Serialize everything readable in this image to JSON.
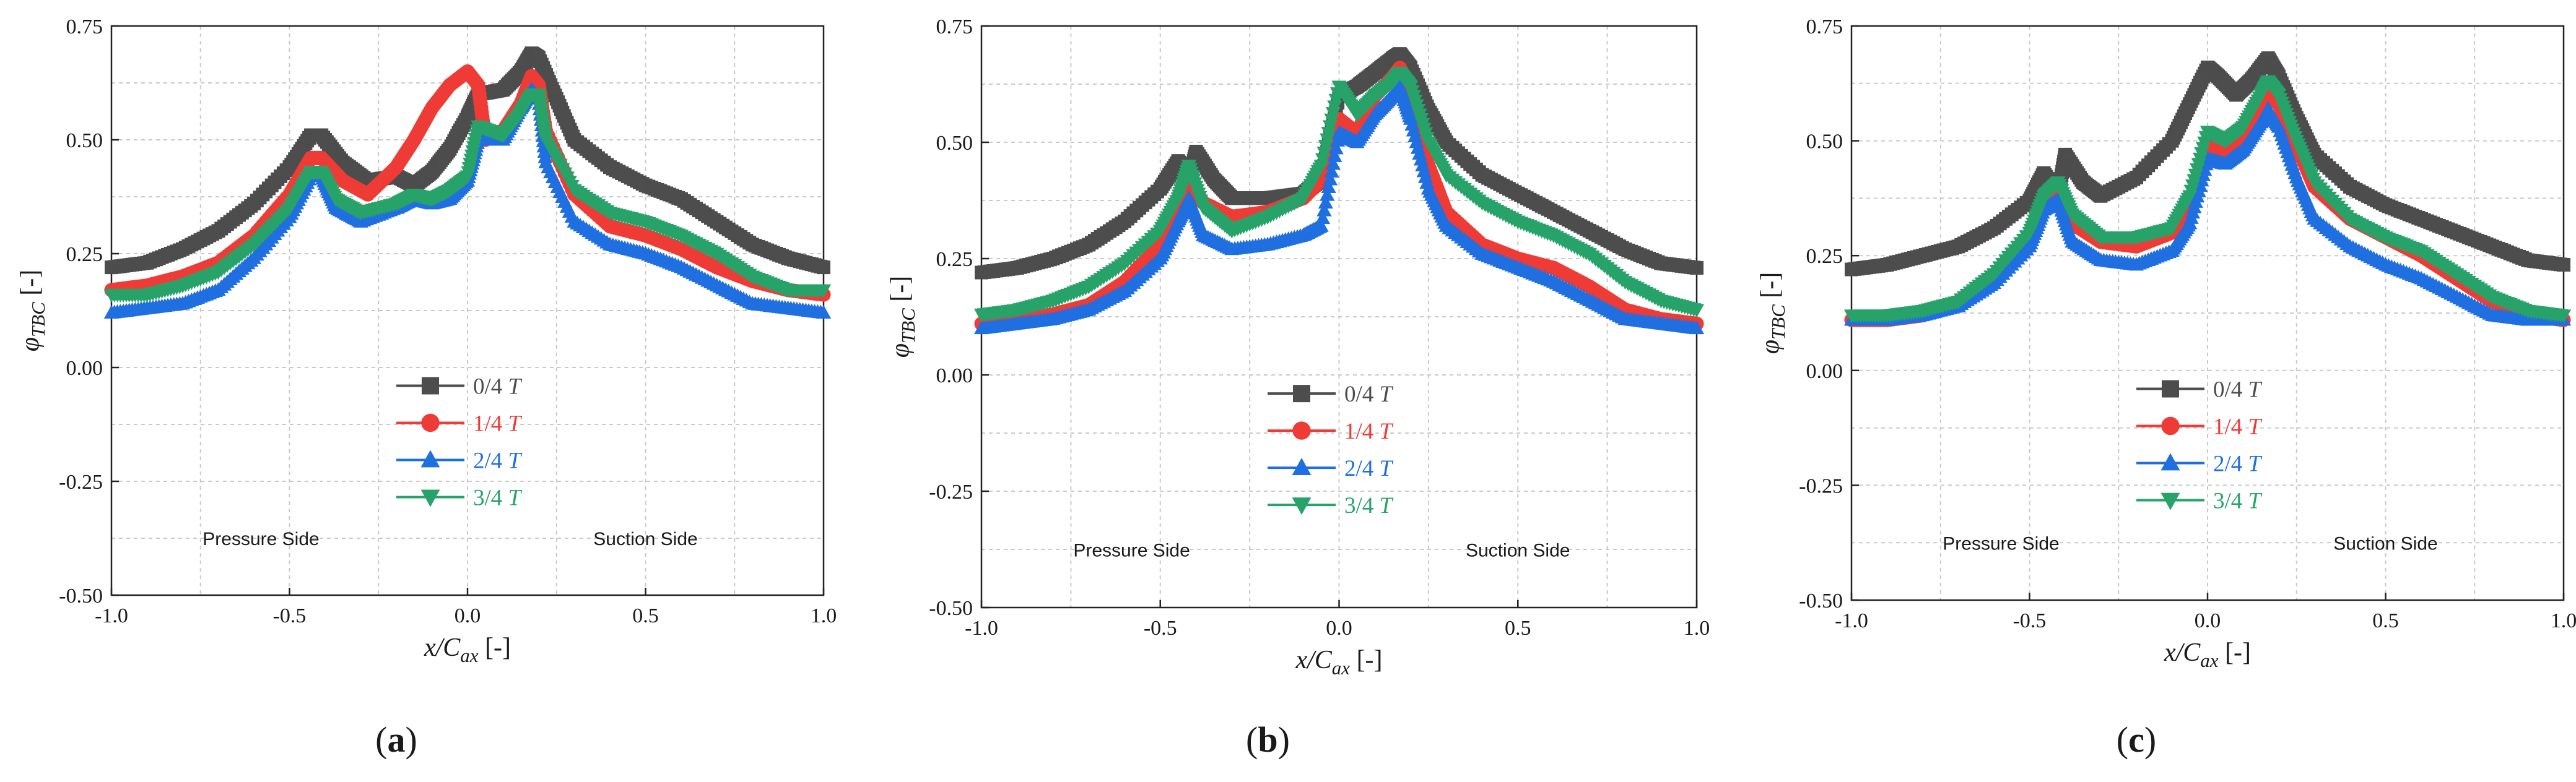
{
  "chart_data": [
    {
      "type": "scatter",
      "panel_label": "a",
      "xlabel_main": "x/C",
      "xlabel_sub": "ax",
      "xlabel_unit": "[-]",
      "ylabel_main": "φ",
      "ylabel_sub": "TBC",
      "ylabel_unit": "[-]",
      "xlim": [
        -1.0,
        1.0
      ],
      "ylim": [
        -0.5,
        0.75
      ],
      "x_ticks": [
        "-1.0",
        "-0.5",
        "0.0",
        "0.5",
        "1.0"
      ],
      "y_ticks": [
        "0.75",
        "0.50",
        "0.25",
        "0.00",
        "-0.25",
        "-0.50"
      ],
      "grid": true,
      "legend_position": "center",
      "annotations": [
        "Pressure Side",
        "Suction Side"
      ],
      "series": [
        {
          "name": "0/4 T",
          "color": "#4d4d4d",
          "marker": "square",
          "x": [
            -1.0,
            -0.9,
            -0.8,
            -0.7,
            -0.6,
            -0.5,
            -0.44,
            -0.41,
            -0.35,
            -0.28,
            -0.2,
            -0.15,
            -0.1,
            -0.05,
            0.0,
            0.03,
            0.1,
            0.15,
            0.18,
            0.2,
            0.25,
            0.3,
            0.4,
            0.5,
            0.6,
            0.7,
            0.8,
            0.9,
            1.0
          ],
          "y": [
            0.22,
            0.23,
            0.26,
            0.3,
            0.36,
            0.44,
            0.51,
            0.51,
            0.45,
            0.41,
            0.42,
            0.4,
            0.43,
            0.48,
            0.55,
            0.6,
            0.61,
            0.65,
            0.69,
            0.68,
            0.59,
            0.5,
            0.44,
            0.4,
            0.37,
            0.32,
            0.27,
            0.24,
            0.22
          ]
        },
        {
          "name": "1/4 T",
          "color": "#ef3b36",
          "marker": "circle",
          "x": [
            -1.0,
            -0.9,
            -0.8,
            -0.7,
            -0.6,
            -0.5,
            -0.44,
            -0.41,
            -0.35,
            -0.28,
            -0.2,
            -0.15,
            -0.1,
            -0.05,
            0.0,
            0.03,
            0.05,
            0.1,
            0.15,
            0.18,
            0.2,
            0.22,
            0.3,
            0.4,
            0.5,
            0.6,
            0.7,
            0.8,
            0.9,
            1.0
          ],
          "y": [
            0.17,
            0.18,
            0.2,
            0.23,
            0.29,
            0.38,
            0.46,
            0.46,
            0.41,
            0.38,
            0.44,
            0.5,
            0.57,
            0.62,
            0.65,
            0.62,
            0.5,
            0.52,
            0.58,
            0.64,
            0.62,
            0.52,
            0.38,
            0.31,
            0.29,
            0.26,
            0.22,
            0.19,
            0.17,
            0.16
          ]
        },
        {
          "name": "2/4 T",
          "color": "#1f6fe0",
          "marker": "triangle-up",
          "x": [
            -1.0,
            -0.9,
            -0.8,
            -0.7,
            -0.6,
            -0.5,
            -0.44,
            -0.41,
            -0.37,
            -0.3,
            -0.2,
            -0.15,
            -0.1,
            -0.05,
            0.0,
            0.03,
            0.1,
            0.15,
            0.18,
            0.2,
            0.22,
            0.3,
            0.4,
            0.5,
            0.6,
            0.7,
            0.8,
            0.9,
            1.0
          ],
          "y": [
            0.12,
            0.13,
            0.14,
            0.17,
            0.24,
            0.33,
            0.42,
            0.42,
            0.35,
            0.32,
            0.35,
            0.37,
            0.36,
            0.37,
            0.41,
            0.5,
            0.5,
            0.57,
            0.61,
            0.59,
            0.45,
            0.32,
            0.27,
            0.25,
            0.22,
            0.18,
            0.14,
            0.13,
            0.12
          ]
        },
        {
          "name": "3/4 T",
          "color": "#27a36a",
          "marker": "triangle-down",
          "x": [
            -1.0,
            -0.9,
            -0.8,
            -0.7,
            -0.6,
            -0.5,
            -0.44,
            -0.41,
            -0.37,
            -0.3,
            -0.2,
            -0.15,
            -0.1,
            -0.05,
            0.0,
            0.03,
            0.1,
            0.15,
            0.18,
            0.2,
            0.22,
            0.3,
            0.4,
            0.5,
            0.6,
            0.7,
            0.8,
            0.9,
            1.0
          ],
          "y": [
            0.16,
            0.16,
            0.18,
            0.21,
            0.27,
            0.35,
            0.43,
            0.43,
            0.37,
            0.34,
            0.36,
            0.38,
            0.37,
            0.39,
            0.42,
            0.53,
            0.51,
            0.56,
            0.6,
            0.6,
            0.5,
            0.39,
            0.34,
            0.32,
            0.29,
            0.25,
            0.2,
            0.17,
            0.17
          ]
        }
      ]
    },
    {
      "type": "scatter",
      "panel_label": "b",
      "xlabel_main": "x/C",
      "xlabel_sub": "ax",
      "xlabel_unit": "[-]",
      "ylabel_main": "φ",
      "ylabel_sub": "TBC",
      "ylabel_unit": "[-]",
      "xlim": [
        -1.0,
        1.0
      ],
      "ylim": [
        -0.5,
        0.75
      ],
      "x_ticks": [
        "-1.0",
        "-0.5",
        "0.0",
        "0.5",
        "1.0"
      ],
      "y_ticks": [
        "0.75",
        "0.50",
        "0.25",
        "0.00",
        "-0.25",
        "-0.50"
      ],
      "grid": true,
      "legend_position": "center",
      "annotations": [
        "Pressure Side",
        "Suction Side"
      ],
      "series": [
        {
          "name": "0/4 T",
          "color": "#4d4d4d",
          "marker": "square",
          "x": [
            -1.0,
            -0.9,
            -0.8,
            -0.7,
            -0.6,
            -0.5,
            -0.45,
            -0.42,
            -0.4,
            -0.35,
            -0.3,
            -0.2,
            -0.1,
            -0.05,
            0.0,
            0.05,
            0.1,
            0.15,
            0.17,
            0.2,
            0.25,
            0.3,
            0.4,
            0.5,
            0.6,
            0.7,
            0.8,
            0.9,
            1.0
          ],
          "y": [
            0.22,
            0.23,
            0.25,
            0.28,
            0.33,
            0.4,
            0.46,
            0.42,
            0.48,
            0.42,
            0.38,
            0.38,
            0.39,
            0.42,
            0.6,
            0.62,
            0.65,
            0.68,
            0.69,
            0.66,
            0.57,
            0.5,
            0.43,
            0.39,
            0.35,
            0.31,
            0.27,
            0.24,
            0.23
          ]
        },
        {
          "name": "1/4 T",
          "color": "#ef3b36",
          "marker": "circle",
          "x": [
            -1.0,
            -0.9,
            -0.8,
            -0.7,
            -0.6,
            -0.5,
            -0.45,
            -0.42,
            -0.38,
            -0.3,
            -0.2,
            -0.1,
            -0.05,
            0.0,
            0.05,
            0.1,
            0.15,
            0.17,
            0.2,
            0.25,
            0.3,
            0.4,
            0.5,
            0.6,
            0.7,
            0.8,
            0.9,
            1.0
          ],
          "y": [
            0.11,
            0.12,
            0.13,
            0.15,
            0.2,
            0.28,
            0.36,
            0.42,
            0.37,
            0.34,
            0.35,
            0.38,
            0.42,
            0.55,
            0.52,
            0.6,
            0.64,
            0.66,
            0.6,
            0.45,
            0.35,
            0.28,
            0.25,
            0.23,
            0.19,
            0.14,
            0.12,
            0.11
          ]
        },
        {
          "name": "2/4 T",
          "color": "#1f6fe0",
          "marker": "triangle-up",
          "x": [
            -1.0,
            -0.9,
            -0.8,
            -0.7,
            -0.6,
            -0.5,
            -0.45,
            -0.42,
            -0.38,
            -0.3,
            -0.2,
            -0.1,
            -0.05,
            0.0,
            0.05,
            0.1,
            0.15,
            0.17,
            0.2,
            0.25,
            0.3,
            0.4,
            0.5,
            0.6,
            0.7,
            0.8,
            0.9,
            1.0
          ],
          "y": [
            0.1,
            0.11,
            0.12,
            0.14,
            0.18,
            0.25,
            0.33,
            0.38,
            0.3,
            0.27,
            0.28,
            0.3,
            0.32,
            0.52,
            0.5,
            0.56,
            0.6,
            0.62,
            0.55,
            0.4,
            0.32,
            0.26,
            0.23,
            0.2,
            0.16,
            0.12,
            0.11,
            0.1
          ]
        },
        {
          "name": "3/4 T",
          "color": "#27a36a",
          "marker": "triangle-down",
          "x": [
            -1.0,
            -0.9,
            -0.8,
            -0.7,
            -0.6,
            -0.5,
            -0.45,
            -0.42,
            -0.38,
            -0.3,
            -0.2,
            -0.1,
            -0.05,
            0.0,
            0.05,
            0.1,
            0.15,
            0.17,
            0.2,
            0.25,
            0.3,
            0.4,
            0.5,
            0.6,
            0.7,
            0.8,
            0.9,
            1.0
          ],
          "y": [
            0.13,
            0.14,
            0.16,
            0.19,
            0.24,
            0.31,
            0.38,
            0.45,
            0.36,
            0.31,
            0.34,
            0.38,
            0.45,
            0.62,
            0.56,
            0.6,
            0.63,
            0.65,
            0.62,
            0.5,
            0.43,
            0.37,
            0.33,
            0.3,
            0.26,
            0.2,
            0.16,
            0.14
          ]
        }
      ]
    },
    {
      "type": "scatter",
      "panel_label": "c",
      "xlabel_main": "x/C",
      "xlabel_sub": "ax",
      "xlabel_unit": "[-]",
      "ylabel_main": "φ",
      "ylabel_sub": "TBC",
      "ylabel_unit": "[-]",
      "xlim": [
        -1.0,
        1.0
      ],
      "ylim": [
        -0.5,
        0.75
      ],
      "x_ticks": [
        "-1.0",
        "-0.5",
        "0.0",
        "0.5",
        "1.0"
      ],
      "y_ticks": [
        "0.75",
        "0.50",
        "0.25",
        "0.00",
        "-0.25",
        "-0.50"
      ],
      "grid": true,
      "legend_position": "center",
      "annotations": [
        "Pressure Side",
        "Suction Side"
      ],
      "series": [
        {
          "name": "0/4 T",
          "color": "#4d4d4d",
          "marker": "square",
          "x": [
            -1.0,
            -0.9,
            -0.8,
            -0.7,
            -0.6,
            -0.5,
            -0.46,
            -0.42,
            -0.4,
            -0.35,
            -0.3,
            -0.2,
            -0.1,
            -0.05,
            0.0,
            0.03,
            0.08,
            0.12,
            0.17,
            0.2,
            0.25,
            0.3,
            0.4,
            0.5,
            0.6,
            0.7,
            0.8,
            0.9,
            1.0
          ],
          "y": [
            0.22,
            0.23,
            0.25,
            0.27,
            0.31,
            0.37,
            0.43,
            0.38,
            0.47,
            0.41,
            0.38,
            0.42,
            0.5,
            0.58,
            0.66,
            0.64,
            0.6,
            0.63,
            0.68,
            0.64,
            0.55,
            0.47,
            0.4,
            0.36,
            0.33,
            0.3,
            0.27,
            0.24,
            0.23
          ]
        },
        {
          "name": "1/4 T",
          "color": "#ef3b36",
          "marker": "circle",
          "x": [
            -1.0,
            -0.9,
            -0.8,
            -0.7,
            -0.6,
            -0.5,
            -0.46,
            -0.42,
            -0.38,
            -0.3,
            -0.2,
            -0.1,
            -0.05,
            0.0,
            0.05,
            0.1,
            0.15,
            0.17,
            0.2,
            0.25,
            0.3,
            0.4,
            0.5,
            0.6,
            0.7,
            0.8,
            0.9,
            1.0
          ],
          "y": [
            0.11,
            0.11,
            0.12,
            0.15,
            0.2,
            0.28,
            0.36,
            0.4,
            0.32,
            0.28,
            0.27,
            0.3,
            0.36,
            0.5,
            0.47,
            0.5,
            0.56,
            0.6,
            0.58,
            0.49,
            0.4,
            0.33,
            0.29,
            0.25,
            0.2,
            0.15,
            0.12,
            0.11
          ]
        },
        {
          "name": "2/4 T",
          "color": "#1f6fe0",
          "marker": "triangle-up",
          "x": [
            -1.0,
            -0.9,
            -0.8,
            -0.7,
            -0.6,
            -0.5,
            -0.46,
            -0.42,
            -0.38,
            -0.3,
            -0.2,
            -0.1,
            -0.05,
            0.0,
            0.05,
            0.1,
            0.15,
            0.17,
            0.2,
            0.25,
            0.3,
            0.4,
            0.5,
            0.6,
            0.7,
            0.8,
            0.9,
            1.0
          ],
          "y": [
            0.11,
            0.11,
            0.12,
            0.14,
            0.19,
            0.27,
            0.35,
            0.37,
            0.28,
            0.24,
            0.23,
            0.26,
            0.32,
            0.46,
            0.45,
            0.48,
            0.54,
            0.57,
            0.53,
            0.42,
            0.33,
            0.27,
            0.23,
            0.2,
            0.16,
            0.12,
            0.11,
            0.11
          ]
        },
        {
          "name": "3/4 T",
          "color": "#27a36a",
          "marker": "triangle-down",
          "x": [
            -1.0,
            -0.9,
            -0.8,
            -0.7,
            -0.6,
            -0.5,
            -0.46,
            -0.42,
            -0.38,
            -0.3,
            -0.2,
            -0.1,
            -0.05,
            0.0,
            0.05,
            0.1,
            0.15,
            0.17,
            0.2,
            0.25,
            0.3,
            0.4,
            0.5,
            0.6,
            0.7,
            0.8,
            0.9,
            1.0
          ],
          "y": [
            0.12,
            0.12,
            0.13,
            0.15,
            0.21,
            0.3,
            0.38,
            0.41,
            0.34,
            0.29,
            0.29,
            0.31,
            0.38,
            0.52,
            0.5,
            0.53,
            0.6,
            0.63,
            0.6,
            0.5,
            0.41,
            0.33,
            0.29,
            0.26,
            0.21,
            0.16,
            0.13,
            0.12
          ]
        }
      ]
    }
  ]
}
